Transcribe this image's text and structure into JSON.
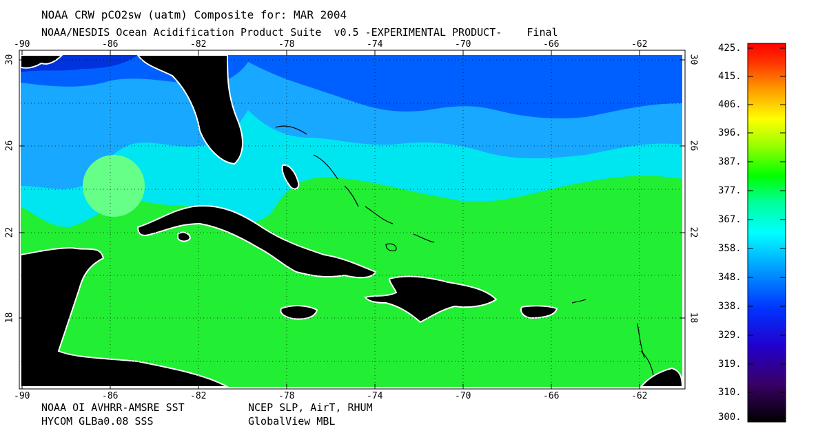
{
  "header": {
    "title": "NOAA CRW pCO2sw (uatm) Composite for: MAR 2004",
    "subtitle": "NOAA/NESDIS Ocean Acidification Product Suite  v0.5 -EXPERIMENTAL PRODUCT-    Final"
  },
  "axes": {
    "lon_ticks": [
      "-90",
      "-86",
      "-82",
      "-78",
      "-74",
      "-70",
      "-66",
      "-62"
    ],
    "lat_ticks": [
      "30",
      "26",
      "22",
      "18"
    ]
  },
  "footer": {
    "sources_left_1": "NOAA OI AVHRR-AMSRE SST",
    "sources_left_2": "HYCOM GLBa0.08 SSS",
    "sources_right_1": "NCEP SLP, AirT, RHUM",
    "sources_right_2": "GlobalView MBL"
  },
  "colorbar": {
    "labels": [
      "425.",
      "415.",
      "406.",
      "396.",
      "387.",
      "377.",
      "367.",
      "358.",
      "348.",
      "338.",
      "329.",
      "319.",
      "310.",
      "300."
    ]
  },
  "colors": {
    "land": "#000000",
    "coast": "#ffffff",
    "ocean_low": "#0055ff",
    "ocean_mid": "#00ddff",
    "ocean_high": "#22ee33"
  }
}
